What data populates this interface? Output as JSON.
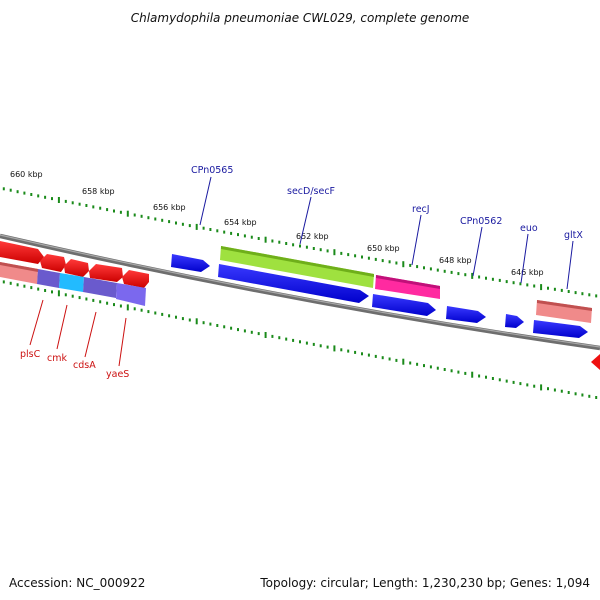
{
  "title": "Chlamydophila pneumoniae CWL029, complete genome",
  "footer": {
    "accession": "Accession: NC_000922",
    "summary": "Topology: circular; Length: 1,230,230 bp; Genes: 1,094"
  },
  "colors": {
    "backbone": "#808080",
    "tick": "#1a8a1a",
    "label_forward": "#1a1aa0",
    "label_reverse": "#cc1111"
  },
  "ticks": [
    {
      "label": "660 kbp"
    },
    {
      "label": "658 kbp"
    },
    {
      "label": "656 kbp"
    },
    {
      "label": "654 kbp"
    },
    {
      "label": "652 kbp"
    },
    {
      "label": "650 kbp"
    },
    {
      "label": "648 kbp"
    },
    {
      "label": "646 kbp"
    }
  ],
  "gene_labels": [
    {
      "text": "CPn0565",
      "strand": "forward"
    },
    {
      "text": "secD/secF",
      "strand": "forward"
    },
    {
      "text": "recJ",
      "strand": "forward"
    },
    {
      "text": "CPn0562",
      "strand": "forward"
    },
    {
      "text": "euo",
      "strand": "forward"
    },
    {
      "text": "gltX",
      "strand": "forward"
    },
    {
      "text": "plsC",
      "strand": "reverse"
    },
    {
      "text": "cmk",
      "strand": "reverse"
    },
    {
      "text": "cdsA",
      "strand": "reverse"
    },
    {
      "text": "yaeS",
      "strand": "reverse"
    }
  ]
}
